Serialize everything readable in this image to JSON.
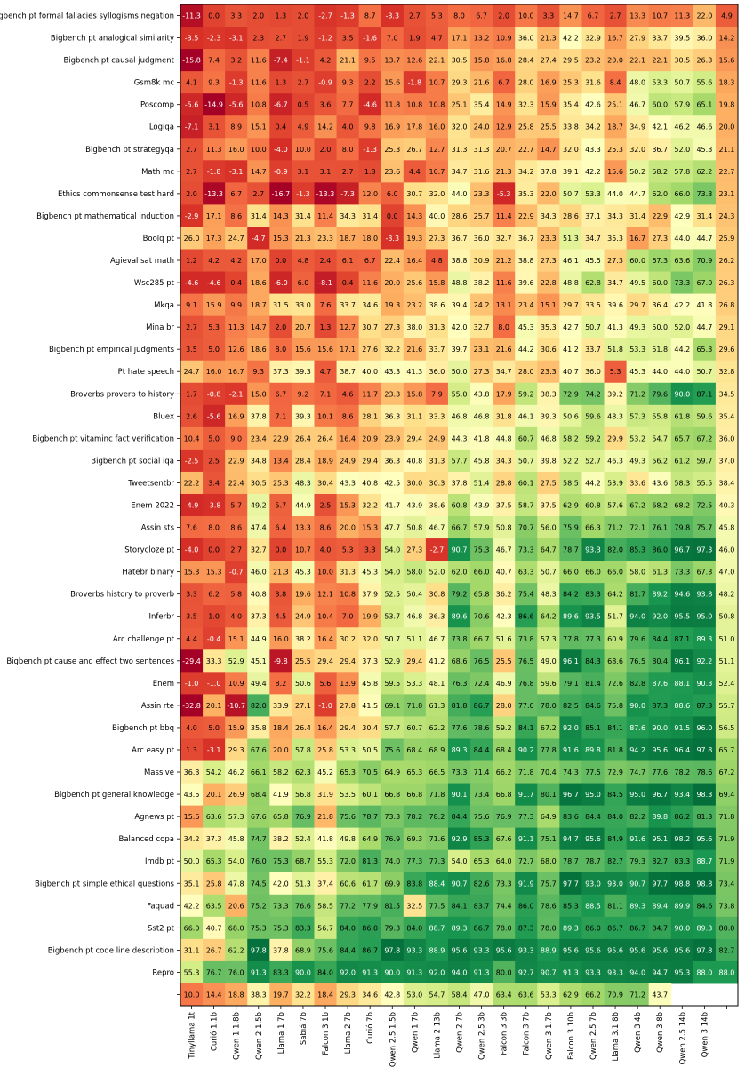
{
  "chart_data": {
    "type": "heatmap",
    "colormap": "RdYlGn",
    "color_range": [
      -15,
      100
    ],
    "x_labels": [
      "Tinyllama 1t",
      "Curió 1.1b",
      "Qwen 1 1.8b",
      "Qwen 2 1.5b",
      "Llama 1 7b",
      "Sabiá 7b",
      "Falcon 3 1b",
      "Llama 2 7b",
      "Curió 7b",
      "Qwen 2.5 1.5b",
      "Qwen 1 7b",
      "Llama 2 13b",
      "Qwen 2 7b",
      "Qwen 2.5 3b",
      "Falcon 3 3b",
      "Falcon 3 7b",
      "Qwen 3 1.7b",
      "Falcon 3 10b",
      "Qwen 2.5 7b",
      "Llama 3.1 8b",
      "Qwen 3 4b",
      "Qwen 3 8b",
      "Qwen 2.5 14b",
      "Qwen 3 14b",
      ""
    ],
    "y_labels": [
      "Bigbench pt formal fallacies syllogisms negation",
      "Bigbench pt analogical similarity",
      "Bigbench pt causal judgment",
      "Gsm8k mc",
      "Poscomp",
      "Logiqa",
      "Bigbench pt strategyqa",
      "Math mc",
      "Ethics commonsense test hard",
      "Bigbench pt mathematical induction",
      "Boolq pt",
      "Agieval sat math",
      "Wsc285 pt",
      "Mkqa",
      "Mina br",
      "Bigbench pt empirical judgments",
      "Pt hate speech",
      "Broverbs proverb to history",
      "Bluex",
      "Bigbench pt vitaminc fact verification",
      "Bigbench pt social iqa",
      "Tweetsentbr",
      "Enem 2022",
      "Assin sts",
      "Storycloze pt",
      "Hatebr binary",
      "Broverbs history to proverb",
      "Inferbr",
      "Arc challenge pt",
      "Bigbench pt cause and effect two sentences",
      "Enem",
      "Assin rte",
      "Bigbench pt bbq",
      "Arc easy pt",
      "Massive",
      "Bigbench pt general knowledge",
      "Agnews pt",
      "Balanced copa",
      "Imdb pt",
      "Bigbench pt simple ethical questions",
      "Faquad",
      "Sst2 pt",
      "Bigbench pt code line description",
      "Repro",
      ""
    ],
    "values": [
      [
        -11.3,
        0.0,
        3.3,
        2.0,
        1.3,
        2.0,
        -2.7,
        -1.3,
        8.7,
        -3.3,
        2.7,
        5.3,
        8.0,
        6.7,
        2.0,
        10.0,
        3.3,
        14.7,
        6.7,
        2.7,
        13.3,
        10.7,
        11.3,
        22.0,
        4.9
      ],
      [
        -3.5,
        -2.3,
        -3.1,
        2.3,
        2.7,
        1.9,
        -1.2,
        3.5,
        -1.6,
        7.0,
        1.9,
        4.7,
        17.1,
        13.2,
        10.9,
        36.0,
        21.3,
        42.2,
        32.9,
        16.7,
        27.9,
        33.7,
        39.5,
        36.0,
        14.2
      ],
      [
        -15.8,
        7.4,
        3.2,
        11.6,
        -7.4,
        -1.1,
        4.2,
        21.1,
        9.5,
        13.7,
        12.6,
        22.1,
        30.5,
        15.8,
        16.8,
        28.4,
        27.4,
        29.5,
        23.2,
        20.0,
        22.1,
        22.1,
        30.5,
        26.3,
        15.6
      ],
      [
        4.1,
        9.3,
        -1.3,
        11.6,
        1.3,
        2.7,
        -0.9,
        9.3,
        2.2,
        15.6,
        -1.8,
        10.7,
        29.3,
        21.6,
        6.7,
        28.0,
        16.9,
        25.3,
        31.6,
        8.4,
        48.0,
        53.3,
        50.7,
        55.6,
        18.3
      ],
      [
        -5.6,
        -14.9,
        -5.6,
        10.8,
        -6.7,
        0.5,
        3.6,
        7.7,
        -4.6,
        11.8,
        10.8,
        10.8,
        25.1,
        35.4,
        14.9,
        32.3,
        15.9,
        35.4,
        42.6,
        25.1,
        46.7,
        60.0,
        57.9,
        65.1,
        19.8
      ],
      [
        -7.1,
        3.1,
        8.9,
        15.1,
        0.4,
        4.9,
        14.2,
        4.0,
        9.8,
        16.9,
        17.8,
        16.0,
        32.0,
        24.0,
        12.9,
        25.8,
        25.5,
        33.8,
        34.2,
        18.7,
        34.9,
        42.1,
        46.2,
        46.6,
        20.0
      ],
      [
        2.7,
        11.3,
        16.0,
        10.0,
        -4.0,
        10.0,
        2.0,
        8.0,
        -1.3,
        25.3,
        26.7,
        12.7,
        31.3,
        31.3,
        20.7,
        22.7,
        14.7,
        32.0,
        43.3,
        25.3,
        32.0,
        36.7,
        52.0,
        45.3,
        21.1
      ],
      [
        2.7,
        -1.8,
        -3.1,
        14.7,
        -0.9,
        3.1,
        3.1,
        2.7,
        1.8,
        23.6,
        4.4,
        10.7,
        34.7,
        31.6,
        21.3,
        34.2,
        37.8,
        39.1,
        42.2,
        15.6,
        50.2,
        58.2,
        57.8,
        62.2,
        22.7
      ],
      [
        2.0,
        -13.3,
        6.7,
        2.7,
        -16.7,
        -1.3,
        -13.3,
        -7.3,
        12.0,
        6.0,
        30.7,
        32.0,
        44.0,
        23.3,
        -5.3,
        35.3,
        22.0,
        50.7,
        53.3,
        44.0,
        44.7,
        62.0,
        66.0,
        73.3,
        23.1
      ],
      [
        -2.9,
        17.1,
        8.6,
        31.4,
        14.3,
        31.4,
        11.4,
        34.3,
        31.4,
        0.0,
        14.3,
        40.0,
        28.6,
        25.7,
        11.4,
        22.9,
        34.3,
        28.6,
        37.1,
        34.3,
        31.4,
        22.9,
        42.9,
        31.4,
        24.3
      ],
      [
        26.0,
        17.3,
        24.7,
        -4.7,
        15.3,
        21.3,
        23.3,
        18.7,
        18.0,
        -3.3,
        19.3,
        27.3,
        36.7,
        36.0,
        32.7,
        36.7,
        23.3,
        51.3,
        34.7,
        35.3,
        16.7,
        27.3,
        44.0,
        44.7,
        25.9
      ],
      [
        1.2,
        4.2,
        4.2,
        17.0,
        0.0,
        4.8,
        2.4,
        6.1,
        6.7,
        22.4,
        16.4,
        4.8,
        38.8,
        30.9,
        21.2,
        38.8,
        27.3,
        46.1,
        45.5,
        27.3,
        60.0,
        67.3,
        63.6,
        70.9,
        26.2
      ],
      [
        -4.6,
        -4.6,
        0.4,
        18.6,
        -6.0,
        6.0,
        -8.1,
        0.4,
        11.6,
        20.0,
        25.6,
        15.8,
        48.8,
        38.2,
        11.6,
        39.6,
        22.8,
        48.8,
        62.8,
        34.7,
        49.5,
        60.0,
        73.3,
        67.0,
        26.3
      ],
      [
        9.1,
        15.9,
        9.9,
        18.7,
        31.5,
        33.0,
        7.6,
        33.7,
        34.6,
        19.3,
        23.2,
        38.6,
        39.4,
        24.2,
        13.1,
        23.4,
        15.1,
        29.7,
        33.5,
        39.6,
        29.7,
        36.4,
        42.2,
        41.8,
        26.8
      ],
      [
        2.7,
        5.3,
        11.3,
        14.7,
        2.0,
        20.7,
        1.3,
        12.7,
        30.7,
        27.3,
        38.0,
        31.3,
        42.0,
        32.7,
        8.0,
        45.3,
        35.3,
        42.7,
        50.7,
        41.3,
        49.3,
        50.0,
        52.0,
        44.7,
        29.1
      ],
      [
        3.5,
        5.0,
        12.6,
        18.6,
        8.0,
        15.6,
        15.6,
        17.1,
        27.6,
        32.2,
        21.6,
        33.7,
        39.7,
        23.1,
        21.6,
        44.2,
        30.6,
        41.2,
        33.7,
        51.8,
        53.3,
        51.8,
        44.2,
        65.3,
        29.6
      ],
      [
        24.7,
        16.0,
        16.7,
        9.3,
        37.3,
        39.3,
        4.7,
        38.7,
        40.0,
        43.3,
        41.3,
        36.0,
        50.0,
        27.3,
        34.7,
        28.0,
        23.3,
        40.7,
        36.0,
        5.3,
        45.3,
        44.0,
        44.0,
        50.7,
        32.8
      ],
      [
        1.7,
        -0.8,
        -2.1,
        15.0,
        6.7,
        9.2,
        7.1,
        4.6,
        11.7,
        23.3,
        15.8,
        7.9,
        55.0,
        43.8,
        17.9,
        59.2,
        38.3,
        72.9,
        74.2,
        39.2,
        71.2,
        79.6,
        90.0,
        87.1,
        34.5
      ],
      [
        2.6,
        -5.6,
        16.9,
        37.8,
        7.1,
        39.3,
        10.1,
        8.6,
        28.1,
        36.3,
        31.1,
        33.3,
        46.8,
        46.8,
        31.8,
        46.1,
        39.3,
        50.6,
        59.6,
        48.3,
        57.3,
        55.8,
        61.8,
        59.6,
        35.4
      ],
      [
        10.4,
        5.0,
        9.0,
        23.4,
        22.9,
        26.4,
        26.4,
        16.4,
        20.9,
        23.9,
        29.4,
        24.9,
        44.3,
        41.8,
        44.8,
        60.7,
        46.8,
        58.2,
        59.2,
        29.9,
        53.2,
        54.7,
        65.7,
        67.2,
        36.0
      ],
      [
        -2.5,
        2.5,
        22.9,
        34.8,
        13.4,
        28.4,
        18.9,
        24.9,
        29.4,
        36.3,
        40.8,
        31.3,
        57.7,
        45.8,
        34.3,
        50.7,
        39.8,
        52.2,
        52.7,
        46.3,
        49.3,
        56.2,
        61.2,
        59.7,
        37.0
      ],
      [
        22.2,
        3.4,
        22.4,
        30.5,
        25.3,
        48.3,
        30.4,
        43.3,
        40.8,
        42.5,
        30.0,
        30.3,
        37.8,
        51.4,
        28.8,
        60.1,
        27.5,
        58.5,
        44.2,
        53.9,
        33.6,
        43.6,
        58.3,
        55.5,
        38.4
      ],
      [
        -4.9,
        -3.8,
        5.7,
        49.2,
        5.7,
        44.9,
        2.5,
        15.3,
        32.2,
        41.7,
        43.9,
        38.6,
        60.8,
        43.9,
        37.5,
        58.7,
        37.5,
        62.9,
        60.8,
        57.6,
        67.2,
        68.2,
        68.2,
        72.5,
        40.3
      ],
      [
        7.6,
        8.0,
        8.6,
        47.4,
        6.4,
        13.3,
        8.6,
        20.0,
        15.3,
        47.7,
        50.8,
        46.7,
        66.7,
        57.9,
        50.8,
        70.7,
        56.0,
        75.9,
        66.3,
        71.2,
        72.1,
        76.1,
        79.8,
        75.7,
        45.8
      ],
      [
        -4.0,
        0.0,
        2.7,
        32.7,
        0.0,
        10.7,
        4.0,
        5.3,
        3.3,
        54.0,
        27.3,
        -2.7,
        90.7,
        75.3,
        46.7,
        73.3,
        64.7,
        78.7,
        93.3,
        82.0,
        85.3,
        86.0,
        96.7,
        97.3,
        46.0
      ],
      [
        15.3,
        15.3,
        -0.7,
        46.0,
        21.3,
        45.3,
        10.0,
        31.3,
        45.3,
        54.0,
        58.0,
        52.0,
        62.0,
        66.0,
        40.7,
        63.3,
        50.7,
        66.0,
        66.0,
        66.0,
        58.0,
        61.3,
        73.3,
        67.3,
        47.0
      ],
      [
        3.3,
        6.2,
        5.8,
        40.8,
        3.8,
        19.6,
        12.1,
        10.8,
        37.9,
        52.5,
        50.4,
        30.8,
        79.2,
        65.8,
        36.2,
        75.4,
        48.3,
        84.2,
        83.3,
        64.2,
        81.7,
        89.2,
        94.6,
        93.8,
        48.2
      ],
      [
        3.5,
        1.0,
        4.0,
        37.3,
        4.5,
        24.9,
        10.4,
        7.0,
        19.9,
        53.7,
        46.8,
        36.3,
        89.6,
        70.6,
        42.3,
        86.6,
        64.2,
        89.6,
        93.5,
        51.7,
        94.0,
        92.0,
        95.5,
        95.0,
        50.8
      ],
      [
        4.4,
        -0.4,
        15.1,
        44.9,
        16.0,
        38.2,
        16.4,
        30.2,
        32.0,
        50.7,
        51.1,
        46.7,
        73.8,
        66.7,
        51.6,
        73.8,
        57.3,
        77.8,
        77.3,
        60.9,
        79.6,
        84.4,
        87.1,
        89.3,
        51.0
      ],
      [
        -29.4,
        33.3,
        52.9,
        45.1,
        -9.8,
        25.5,
        29.4,
        29.4,
        37.3,
        52.9,
        29.4,
        41.2,
        68.6,
        76.5,
        25.5,
        76.5,
        49.0,
        96.1,
        84.3,
        68.6,
        76.5,
        80.4,
        96.1,
        92.2,
        51.1
      ],
      [
        -1.0,
        -1.0,
        10.9,
        49.4,
        8.2,
        50.6,
        5.6,
        13.9,
        45.8,
        59.5,
        53.3,
        48.1,
        76.3,
        72.4,
        46.9,
        76.8,
        59.6,
        79.1,
        81.4,
        72.6,
        82.8,
        87.6,
        88.1,
        90.3,
        52.4
      ],
      [
        -32.8,
        20.1,
        -10.7,
        82.0,
        33.9,
        27.1,
        -1.0,
        27.8,
        41.5,
        69.1,
        71.8,
        61.3,
        81.8,
        86.7,
        28.0,
        77.0,
        78.0,
        82.5,
        84.6,
        75.8,
        90.0,
        87.3,
        88.6,
        87.3,
        55.7
      ],
      [
        4.0,
        5.0,
        15.9,
        35.8,
        18.4,
        26.4,
        16.4,
        29.4,
        30.4,
        57.7,
        60.7,
        62.2,
        77.6,
        78.6,
        59.2,
        84.1,
        67.2,
        92.0,
        85.1,
        84.1,
        87.6,
        90.0,
        91.5,
        96.0,
        56.5
      ],
      [
        1.3,
        -3.1,
        29.3,
        67.6,
        20.0,
        57.8,
        25.8,
        53.3,
        50.5,
        75.6,
        68.4,
        68.9,
        89.3,
        84.4,
        68.4,
        90.2,
        77.8,
        91.6,
        89.8,
        81.8,
        94.2,
        95.6,
        96.4,
        97.8,
        65.7
      ],
      [
        36.3,
        54.2,
        46.2,
        66.1,
        58.2,
        62.3,
        45.2,
        65.3,
        70.5,
        64.9,
        65.3,
        66.5,
        73.3,
        71.4,
        66.2,
        71.8,
        70.4,
        74.3,
        77.5,
        72.9,
        74.7,
        77.6,
        78.2,
        78.6,
        67.2
      ],
      [
        43.5,
        20.1,
        26.9,
        68.4,
        41.9,
        56.8,
        31.9,
        53.5,
        60.1,
        66.8,
        66.8,
        71.8,
        90.1,
        73.4,
        66.8,
        91.7,
        80.1,
        96.7,
        95.0,
        84.5,
        95.0,
        96.7,
        93.4,
        98.3,
        69.4
      ],
      [
        15.6,
        63.6,
        57.3,
        67.6,
        65.8,
        76.9,
        21.8,
        75.6,
        78.7,
        73.3,
        78.2,
        78.2,
        84.4,
        75.6,
        76.9,
        77.3,
        64.9,
        83.6,
        84.4,
        84.0,
        82.2,
        89.8,
        86.2,
        81.3,
        71.8
      ],
      [
        34.2,
        37.3,
        45.8,
        74.7,
        38.2,
        52.4,
        41.8,
        49.8,
        64.9,
        76.9,
        69.3,
        71.6,
        92.9,
        85.3,
        67.6,
        91.1,
        75.1,
        94.7,
        95.6,
        84.9,
        91.6,
        95.1,
        98.2,
        95.6,
        71.9
      ],
      [
        50.0,
        65.3,
        54.0,
        76.0,
        75.3,
        68.7,
        55.3,
        72.0,
        81.3,
        74.0,
        77.3,
        77.3,
        54.0,
        65.3,
        64.0,
        72.7,
        68.0,
        78.7,
        78.7,
        82.7,
        79.3,
        82.7,
        83.3,
        88.7,
        71.9
      ],
      [
        35.1,
        25.8,
        47.8,
        74.5,
        42.0,
        51.3,
        37.4,
        60.6,
        61.7,
        69.9,
        83.8,
        88.4,
        90.7,
        82.6,
        73.3,
        91.9,
        75.7,
        97.7,
        93.0,
        93.0,
        90.7,
        97.7,
        98.8,
        98.8,
        73.4
      ],
      [
        42.2,
        63.5,
        20.6,
        75.2,
        73.3,
        76.6,
        58.5,
        77.2,
        77.9,
        81.5,
        32.5,
        77.5,
        84.1,
        83.7,
        74.4,
        86.0,
        78.6,
        85.3,
        88.5,
        81.1,
        89.3,
        89.4,
        89.9,
        84.6,
        73.8
      ],
      [
        66.0,
        40.7,
        68.0,
        75.3,
        75.3,
        83.3,
        56.7,
        84.0,
        86.0,
        79.3,
        84.0,
        88.7,
        89.3,
        86.7,
        78.0,
        87.3,
        78.0,
        89.3,
        86.0,
        86.7,
        86.7,
        84.7,
        90.0,
        89.3,
        80.0
      ],
      [
        31.1,
        26.7,
        62.2,
        97.8,
        37.8,
        68.9,
        75.6,
        84.4,
        86.7,
        97.8,
        93.3,
        88.9,
        95.6,
        93.3,
        95.6,
        93.3,
        88.9,
        95.6,
        95.6,
        95.6,
        95.6,
        95.6,
        95.6,
        97.8,
        82.7
      ],
      [
        55.3,
        76.7,
        76.0,
        91.3,
        83.3,
        90.0,
        84.0,
        92.0,
        91.3,
        90.0,
        91.3,
        92.0,
        94.0,
        91.3,
        80.0,
        92.7,
        90.7,
        91.3,
        93.3,
        93.3,
        94.0,
        94.7,
        95.3,
        88.0,
        88.0
      ],
      [
        10.0,
        14.4,
        18.8,
        38.3,
        19.7,
        32.2,
        18.4,
        29.3,
        34.6,
        42.8,
        53.0,
        54.7,
        58.4,
        47.0,
        63.4,
        63.6,
        53.3,
        62.9,
        66.2,
        70.9,
        71.2,
        43.7,
        null,
        null,
        null
      ]
    ]
  }
}
